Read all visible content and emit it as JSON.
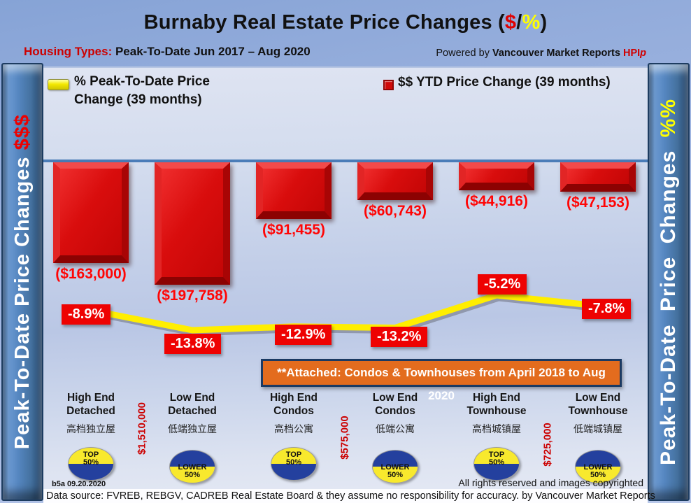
{
  "header": {
    "title_prefix": "Burnaby Real Estate Price Changes (",
    "title_dollar": "$",
    "title_slash": "/",
    "title_percent": "%",
    "title_suffix": ")",
    "subtitle_label": "Housing Types:",
    "subtitle_text": " Peak-To-Date Jun 2017 – Aug 2020",
    "powered_prefix": "Powered by ",
    "powered_brand": "Vancouver Market Reports ",
    "powered_hpi": "HPI",
    "powered_hpi_p": "p"
  },
  "sidebars": {
    "left_text": "Peak-To-Date Price Changes ",
    "left_suffix": "$$$",
    "right_text": "Peak-To-Date Price Changes ",
    "right_suffix": "%%"
  },
  "legend": {
    "pct_line1": "% Peak-To-Date Price",
    "pct_line2": "Change (39 months)",
    "usd_label": "$$ YTD Price Change (39 months)"
  },
  "banner_note": "**Attached: Condos & Townhouses from April 2018 to Aug 2020",
  "chart_data": {
    "type": "combo",
    "title": "Burnaby Real Estate Price Changes ($/%)",
    "period": "Peak-To-Date Jun 2017 – Aug 2020",
    "categories": [
      "High End Detached",
      "Low End Detached",
      "High End Condos",
      "Low End Condos",
      "High End Townhouse",
      "Low End Townhouse"
    ],
    "categories_zh": [
      "高档独立屋",
      "低端独立屋",
      "高档公寓",
      "低端公寓",
      "高档城镇屋",
      "低端城镇屋"
    ],
    "series": [
      {
        "name": "$$ YTD Price Change (39 months)",
        "type": "bar",
        "color": "#d90d0d",
        "values": [
          -163000,
          -197758,
          -91455,
          -60743,
          -44916,
          -47153
        ],
        "labels": [
          "($163,000)",
          "($197,758)",
          "($91,455)",
          "($60,743)",
          "($44,916)",
          "($47,153)"
        ]
      },
      {
        "name": "% Peak-To-Date Price Change (39 months)",
        "type": "line",
        "color": "#ffee00",
        "values": [
          -8.9,
          -13.8,
          -12.9,
          -13.2,
          -5.2,
          -7.8
        ],
        "labels": [
          "-8.9%",
          "-13.8%",
          "-12.9%",
          "-13.2%",
          "-5.2%",
          "-7.8%"
        ]
      }
    ],
    "badges": [
      {
        "variant": "top",
        "lines": [
          "TOP",
          "50%"
        ]
      },
      {
        "variant": "lower",
        "lines": [
          "LOWER",
          "50%"
        ]
      },
      {
        "variant": "top",
        "lines": [
          "TOP",
          "50%"
        ]
      },
      {
        "variant": "lower",
        "lines": [
          "LOWER",
          "50%"
        ]
      },
      {
        "variant": "top",
        "lines": [
          "TOP",
          "50%"
        ]
      },
      {
        "variant": "lower",
        "lines": [
          "LOWER",
          "50%"
        ]
      }
    ],
    "price_markers": [
      {
        "text": "$1,510,000",
        "between": [
          0,
          1
        ]
      },
      {
        "text": "$575,000",
        "between": [
          2,
          3
        ]
      },
      {
        "text": "$725,000",
        "between": [
          4,
          5
        ]
      }
    ],
    "legend_position": "top",
    "grid": false
  },
  "footer": {
    "version": "b5a 09.20.2020",
    "rights": "All rights reserved and images copyrighted",
    "source": "Data source: FVREB, REBGV, CADREB Real Estate Board & they assume no responsibility for accuracy. by Vancouver Market Reports"
  },
  "colors": {
    "bar_red": "#d90d0d",
    "line_yellow": "#ffee00",
    "value_label_red": "#ff0505",
    "pct_box_red": "#ee0202",
    "banner_orange": "#e36c1e",
    "column_blue": "#4a7ab8",
    "axis_blue": "#4a7cb8",
    "title_dollar_red": "#e00000",
    "title_percent_yellow": "#ffff00"
  }
}
